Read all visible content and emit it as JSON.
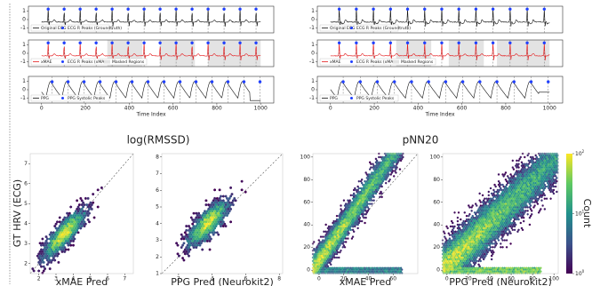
{
  "top_panels": [
    {
      "rows": [
        {
          "yticks": [
            -1,
            0,
            1
          ],
          "ylim": [
            -1.6,
            1.6
          ],
          "legend": [
            "Original ECG",
            "ECG R Peaks (Groundtruth)"
          ]
        },
        {
          "yticks": [
            -1,
            0,
            1
          ],
          "ylim": [
            -1.6,
            1.6
          ],
          "legend": [
            "xMAE",
            "ECG R Peaks (xMAE)",
            "Masked Regions"
          ]
        },
        {
          "yticks": [
            -1,
            0,
            1
          ],
          "ylim": [
            -1.6,
            1.6
          ],
          "legend": [
            "PPG",
            "PPG Systolic Peaks"
          ]
        }
      ],
      "xlim": [
        -60,
        1060
      ],
      "xticks": [
        0,
        200,
        400,
        600,
        800,
        1000
      ],
      "xlabel": "Time Index"
    },
    {
      "rows": [
        {
          "yticks": [
            -1,
            0,
            1
          ],
          "ylim": [
            -1.6,
            1.6
          ],
          "legend": [
            "Original ECG",
            "ECG R Peaks (Groundtruth)"
          ]
        },
        {
          "yticks": [
            -1,
            0,
            1
          ],
          "ylim": [
            -1.6,
            1.6
          ],
          "legend": [
            "xMAE",
            "ECG R Peaks (xMAE)",
            "Masked Regions"
          ]
        },
        {
          "yticks": [
            -1,
            0,
            1
          ],
          "ylim": [
            -1.6,
            1.6
          ],
          "legend": [
            "PPG",
            "PPG Systolic Peaks"
          ]
        }
      ],
      "xlim": [
        -60,
        1060
      ],
      "xticks": [
        0,
        200,
        400,
        600,
        800,
        1000
      ],
      "xlabel": "Time Index"
    }
  ],
  "scatter": {
    "titles": [
      "log(RMSSD)",
      "pNN20"
    ],
    "ylabel": "GT HRV (ECG)",
    "plots": [
      {
        "xlabel": "xMAE Pred",
        "xlim": [
          1.5,
          7.5
        ],
        "ylim": [
          1.5,
          7.5
        ],
        "xticks": [
          2,
          3,
          4,
          5,
          6,
          7
        ],
        "yticks": [
          2,
          3,
          4,
          5,
          6,
          7
        ]
      },
      {
        "xlabel": "PPG Pred (Neurokit2)",
        "xlim": [
          1,
          8.2
        ],
        "ylim": [
          1,
          8.2
        ],
        "xticks": [
          2,
          4,
          6,
          8
        ],
        "yticks": [
          1,
          2,
          3,
          4,
          5,
          6,
          7,
          8
        ]
      },
      {
        "xlabel": "xMAE Pred",
        "xlim": [
          -5,
          80
        ],
        "ylim": [
          -3,
          103
        ],
        "xticks": [
          0,
          20,
          40,
          60
        ],
        "yticks": [
          0,
          20,
          40,
          60,
          80,
          100
        ]
      },
      {
        "xlabel": "PPG Pred (Neurokit2)",
        "xlim": [
          -4,
          104
        ],
        "ylim": [
          -3,
          103
        ],
        "xticks": [
          0,
          20,
          40,
          60,
          80,
          100
        ],
        "yticks": [
          0,
          20,
          40,
          60,
          80,
          100
        ]
      }
    ],
    "colorbar": {
      "label": "Count",
      "ticks": [
        {
          "base": "10",
          "exp": "2"
        },
        {
          "base": "10",
          "exp": "1"
        },
        {
          "base": "10",
          "exp": "0"
        }
      ]
    }
  }
}
